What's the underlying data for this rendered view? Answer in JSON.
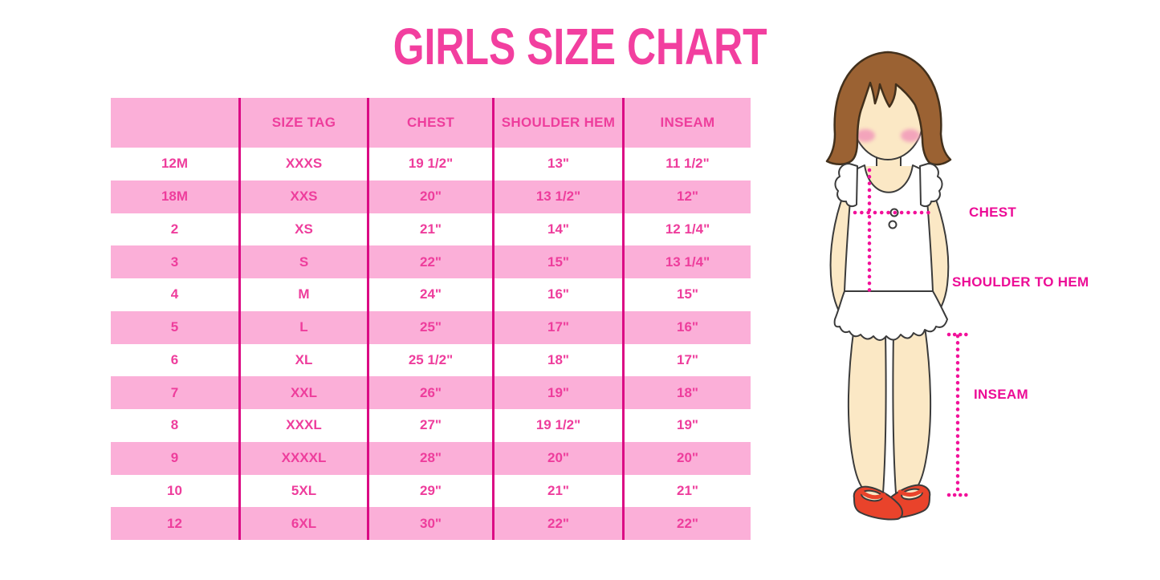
{
  "chart_data": {
    "type": "table",
    "title": "GIRLS SIZE CHART",
    "columns": [
      "",
      "SIZE TAG",
      "CHEST",
      "SHOULDER HEM",
      "INSEAM"
    ],
    "rows": [
      [
        "12M",
        "XXXS",
        "19 1/2\"",
        "13\"",
        "11 1/2\""
      ],
      [
        "18M",
        "XXS",
        "20\"",
        "13 1/2\"",
        "12\""
      ],
      [
        "2",
        "XS",
        "21\"",
        "14\"",
        "12 1/4\""
      ],
      [
        "3",
        "S",
        "22\"",
        "15\"",
        "13 1/4\""
      ],
      [
        "4",
        "M",
        "24\"",
        "16\"",
        "15\""
      ],
      [
        "5",
        "L",
        "25\"",
        "17\"",
        "16\""
      ],
      [
        "6",
        "XL",
        "25 1/2\"",
        "18\"",
        "17\""
      ],
      [
        "7",
        "XXL",
        "26\"",
        "19\"",
        "18\""
      ],
      [
        "8",
        "XXXL",
        "27\"",
        "19 1/2\"",
        "19\""
      ],
      [
        "9",
        "XXXXL",
        "28\"",
        "20\"",
        "20\""
      ],
      [
        "10",
        "5XL",
        "29\"",
        "21\"",
        "21\""
      ],
      [
        "12",
        "6XL",
        "30\"",
        "22\"",
        "22\""
      ]
    ],
    "layout_hints": {
      "header_background": "pink",
      "row_striping": "white/pink alternating starting white",
      "column_dividers": "solid deep pink vertical lines",
      "grid": "no horizontal borders, no outer border"
    }
  },
  "figure": {
    "description": "cartoon girl with brown bob hair, white ruffled sleeveless top, red mary-jane shoes, with dotted measurement guide lines",
    "labels": {
      "chest": "CHEST",
      "shoulder_to_hem": "SHOULDER TO HEM",
      "inseam": "INSEAM"
    }
  },
  "colors": {
    "title_pink": "#F23F9F",
    "row_pink": "#FBAFD8",
    "table_text_pink": "#EE3D9C",
    "column_divider_pink": "#DB0A84",
    "measure_label_magenta": "#EC0C96",
    "dotted_line_pink": "#F2109A",
    "hair_brown": "#9B6233",
    "skin": "#FBE8C5",
    "shoe_red": "#E9432B",
    "background": "#FFFFFF"
  }
}
